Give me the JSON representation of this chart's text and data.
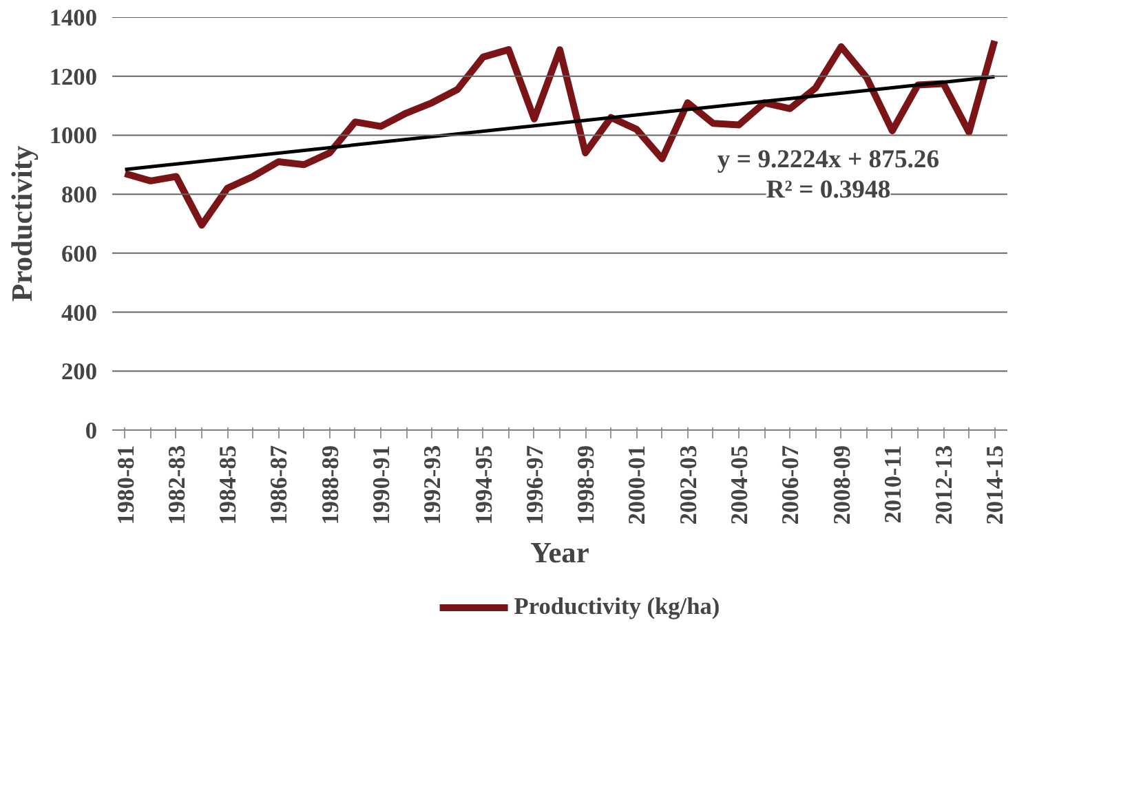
{
  "chart_data": {
    "type": "line",
    "xlabel": "Year",
    "ylabel": "Productivity",
    "categories": [
      "1980-81",
      null,
      "1982-83",
      null,
      "1984-85",
      null,
      "1986-87",
      null,
      "1988-89",
      null,
      "1990-91",
      null,
      "1992-93",
      null,
      "1994-95",
      null,
      "1996-97",
      null,
      "1998-99",
      null,
      "2000-01",
      null,
      "2002-03",
      null,
      "2004-05",
      null,
      "2006-07",
      null,
      "2008-09",
      null,
      "2010-11",
      null,
      "2012-13",
      null,
      "2014-15"
    ],
    "series": [
      {
        "name": "Productivity (kg/ha)",
        "color": "#7b1416",
        "values": [
          870,
          845,
          860,
          695,
          820,
          860,
          910,
          900,
          940,
          1045,
          1030,
          1075,
          1110,
          1155,
          1265,
          1290,
          1055,
          1290,
          940,
          1060,
          1020,
          920,
          1110,
          1040,
          1035,
          1110,
          1090,
          1160,
          1300,
          1195,
          1015,
          1170,
          1175,
          1010,
          1320
        ]
      },
      {
        "type": "line",
        "color": "#000000",
        "x": [
          "1980-81",
          "2014-15"
        ],
        "values": [
          884,
          1198
        ]
      }
    ],
    "annotations": [
      "y = 9.2224x + 875.26",
      "R² = 0.3948"
    ],
    "ylim": [
      0,
      1400
    ],
    "yticks": [
      0,
      200,
      400,
      600,
      800,
      1000,
      1200,
      1400
    ],
    "grid": "y",
    "legend": "bottom",
    "marker": "none",
    "line_style": "solid"
  }
}
